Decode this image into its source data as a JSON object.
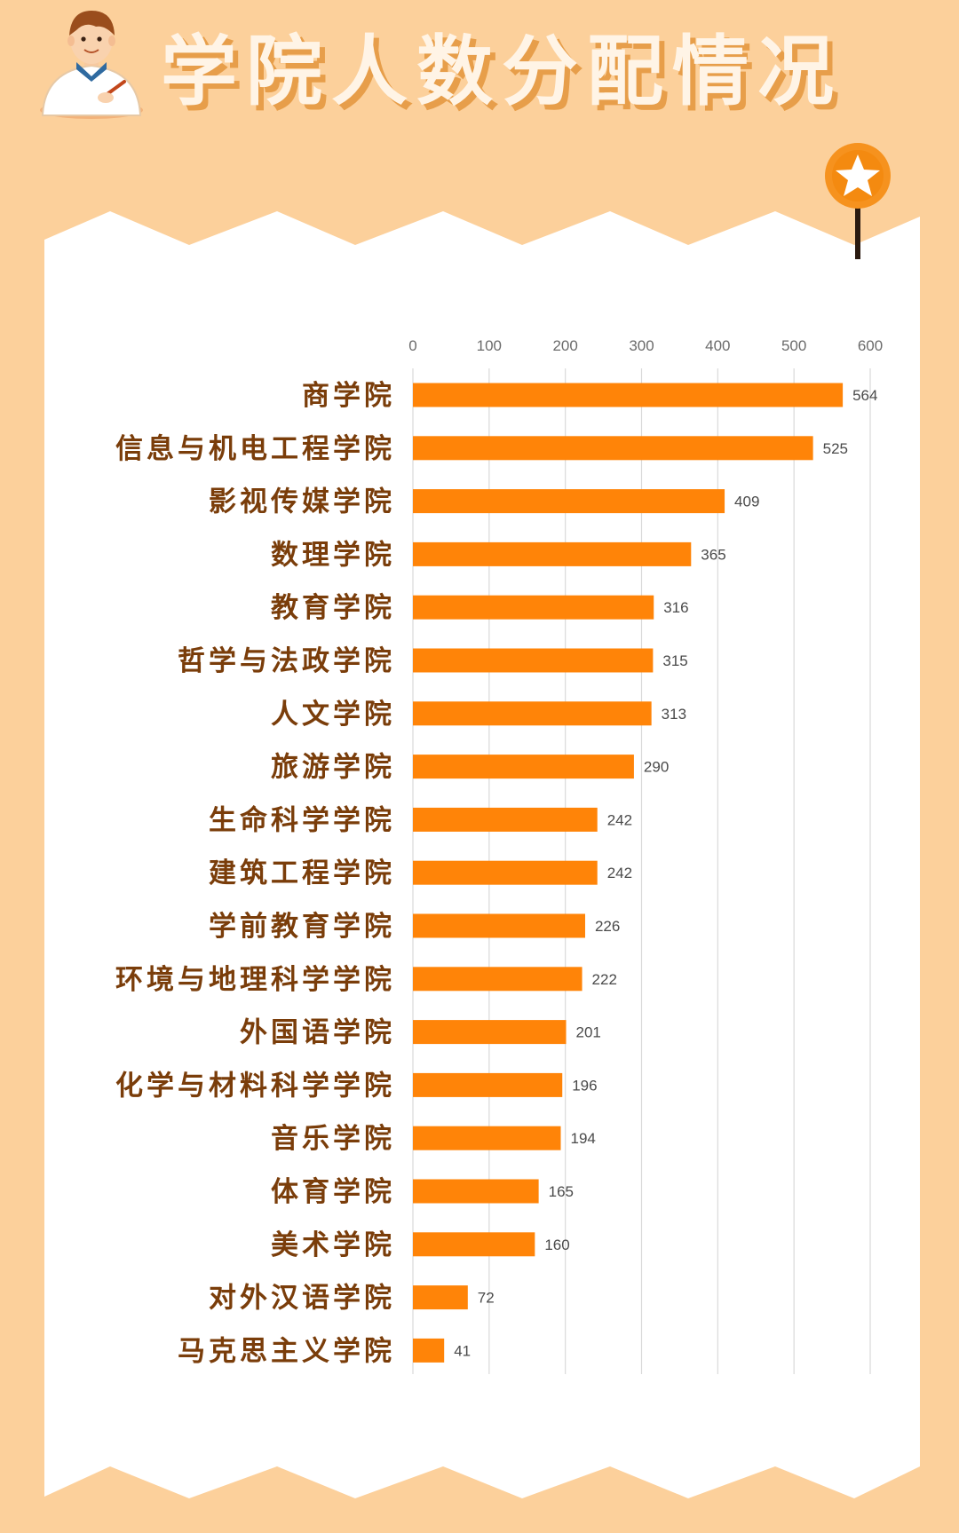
{
  "page": {
    "title": "学院人数分配情况",
    "colors": {
      "background": "#fcd09b",
      "panel": "#ffffff",
      "bar": "#ff8408",
      "title_fill": "#fff4e6",
      "title_shadow": "#e79e4a",
      "label": "#7a3d0a",
      "badge": "#f6921e"
    },
    "icons": [
      "student-avatar-icon",
      "star-badge-icon"
    ]
  },
  "chart_data": {
    "type": "bar",
    "orientation": "horizontal",
    "categories": [
      "商学院",
      "信息与机电工程学院",
      "影视传媒学院",
      "数理学院",
      "教育学院",
      "哲学与法政学院",
      "人文学院",
      "旅游学院",
      "生命科学学院",
      "建筑工程学院",
      "学前教育学院",
      "环境与地理科学学院",
      "外国语学院",
      "化学与材料科学学院",
      "音乐学院",
      "体育学院",
      "美术学院",
      "对外汉语学院",
      "马克思主义学院"
    ],
    "values": [
      564,
      525,
      409,
      365,
      316,
      315,
      313,
      290,
      242,
      242,
      226,
      222,
      201,
      196,
      194,
      165,
      160,
      72,
      41
    ],
    "value_labels": [
      "564",
      "525",
      "409",
      "365",
      "316",
      "315",
      "313",
      "290",
      "242",
      "242",
      "226",
      "222",
      "201",
      "196",
      "194",
      "165",
      "160",
      "72",
      "41"
    ],
    "x_ticks": [
      "0",
      "100",
      "200",
      "300",
      "400",
      "500",
      "600"
    ],
    "xlim": [
      0,
      600
    ],
    "axis_position": "top",
    "grid": true,
    "legend": "none"
  }
}
